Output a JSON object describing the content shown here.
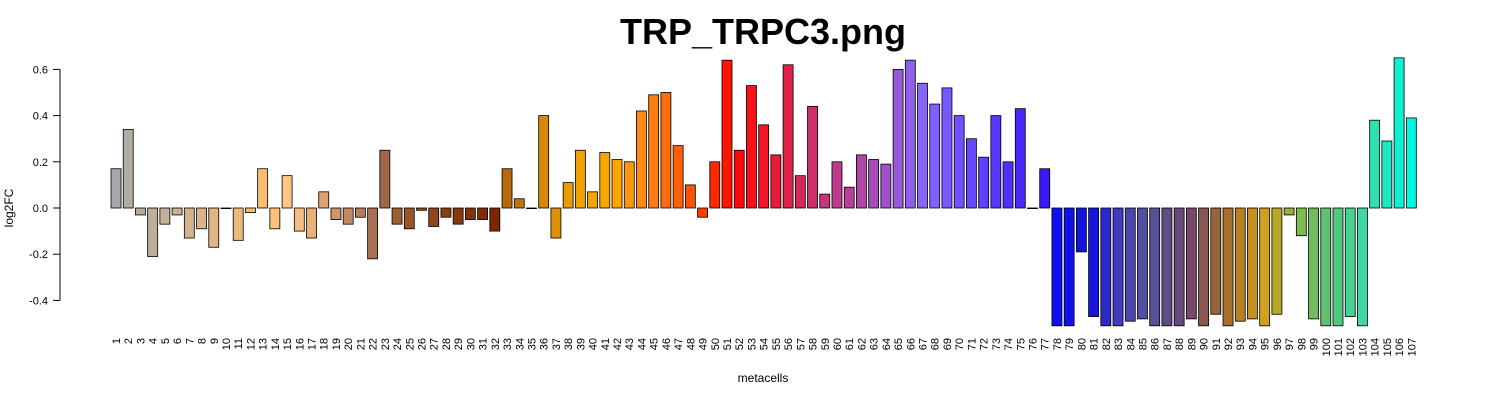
{
  "chart_data": {
    "type": "bar",
    "title": "TRP_TRPC3.png",
    "xlabel": "metacells",
    "ylabel": "log2FC",
    "ylim": [
      -0.5,
      0.6
    ],
    "yticks": [
      "0.6",
      "0.4",
      "0.2",
      "0.0",
      "-0.2",
      "-0.4"
    ],
    "categories": [
      "1",
      "2",
      "3",
      "4",
      "5",
      "6",
      "7",
      "8",
      "9",
      "10",
      "11",
      "12",
      "13",
      "14",
      "15",
      "16",
      "17",
      "18",
      "19",
      "20",
      "21",
      "22",
      "23",
      "24",
      "25",
      "26",
      "27",
      "28",
      "29",
      "30",
      "31",
      "32",
      "33",
      "34",
      "35",
      "36",
      "37",
      "38",
      "39",
      "40",
      "41",
      "42",
      "43",
      "44",
      "45",
      "46",
      "47",
      "48",
      "49",
      "50",
      "51",
      "52",
      "53",
      "54",
      "55",
      "56",
      "57",
      "58",
      "59",
      "60",
      "61",
      "62",
      "63",
      "64",
      "65",
      "66",
      "67",
      "68",
      "69",
      "70",
      "71",
      "72",
      "73",
      "74",
      "75",
      "76",
      "77",
      "78",
      "79",
      "80",
      "81",
      "82",
      "83",
      "84",
      "85",
      "86",
      "87",
      "88",
      "89",
      "90",
      "91",
      "92",
      "93",
      "94",
      "95",
      "96",
      "97",
      "98",
      "99",
      "100",
      "101",
      "102",
      "103",
      "104",
      "105",
      "106",
      "107"
    ],
    "values": [
      0.17,
      0.34,
      -0.03,
      -0.21,
      -0.07,
      -0.03,
      -0.13,
      -0.09,
      -0.17,
      0.0,
      -0.14,
      -0.02,
      0.17,
      -0.09,
      0.14,
      -0.1,
      -0.13,
      0.07,
      -0.05,
      -0.07,
      -0.04,
      -0.22,
      0.25,
      -0.07,
      -0.09,
      -0.01,
      -0.08,
      -0.04,
      -0.07,
      -0.05,
      -0.05,
      -0.1,
      0.17,
      0.04,
      0.0,
      0.4,
      -0.13,
      0.11,
      0.25,
      0.07,
      0.24,
      0.21,
      0.2,
      0.42,
      0.49,
      0.5,
      0.27,
      0.1,
      -0.04,
      0.2,
      0.64,
      0.25,
      0.53,
      0.36,
      0.23,
      0.62,
      0.14,
      0.44,
      0.06,
      0.2,
      0.09,
      0.23,
      0.21,
      0.19,
      0.6,
      0.64,
      0.54,
      0.45,
      0.52,
      0.4,
      0.3,
      0.22,
      0.4,
      0.2,
      0.43,
      0.0,
      0.17,
      -0.51,
      -0.51,
      -0.19,
      -0.47,
      -0.51,
      -0.51,
      -0.49,
      -0.48,
      -0.51,
      -0.51,
      -0.51,
      -0.48,
      -0.51,
      -0.46,
      -0.51,
      -0.49,
      -0.48,
      -0.51,
      -0.46,
      -0.03,
      -0.12,
      -0.48,
      -0.51,
      -0.51,
      -0.47,
      -0.51,
      0.38,
      0.29,
      0.65,
      0.39
    ],
    "colors": [
      "#a8a8a8",
      "#b2aca4",
      "#b9ada1",
      "#bfae9c",
      "#c6b098",
      "#ccb193",
      "#d3b38e",
      "#d9b48a",
      "#e0b685",
      "#e6b780",
      "#edb97c",
      "#f3ba77",
      "#f9bc72",
      "#fcc27b",
      "#fdc785",
      "#f6bd82",
      "#e9b07a",
      "#dca372",
      "#cf966a",
      "#c38a62",
      "#b77d5b",
      "#aa7053",
      "#a0684b",
      "#9c5f2f",
      "#985628",
      "#944d21",
      "#90451a",
      "#8c3e13",
      "#88380d",
      "#843209",
      "#802c05",
      "#7d2701",
      "#b8690f",
      "#c2730c",
      "#cc7d09",
      "#d68706",
      "#e09103",
      "#ea9b00",
      "#f2a200",
      "#f7a400",
      "#fba500",
      "#ffa500",
      "#ff9810",
      "#ff8a18",
      "#ff7c12",
      "#ff6e0c",
      "#ff6006",
      "#ff5200",
      "#ff3c00",
      "#ff2800",
      "#ff1400",
      "#ff0a0a",
      "#f8101a",
      "#f0162a",
      "#e81c3a",
      "#e0224a",
      "#d8285a",
      "#d02e6a",
      "#c8347a",
      "#c03a8a",
      "#b8409a",
      "#b046aa",
      "#a84cba",
      "#a052ca",
      "#9858da",
      "#905eea",
      "#8864fa",
      "#8060ff",
      "#7858ff",
      "#7050ff",
      "#6848ff",
      "#6040ff",
      "#5838ff",
      "#5030ff",
      "#4828ff",
      "#4020ff",
      "#3818ff",
      "#1010f0",
      "#1212e8",
      "#1414e0",
      "#1616d8",
      "#2a2aca",
      "#3c3cbc",
      "#4848ae",
      "#5050a0",
      "#585092",
      "#604c84",
      "#684876",
      "#784868",
      "#885850",
      "#98643a",
      "#a87028",
      "#b88020",
      "#c89020",
      "#d0a020",
      "#b8a828",
      "#98b040",
      "#80b850",
      "#70bc60",
      "#60c070",
      "#50c880",
      "#48d090",
      "#40d8a0",
      "#30e0b0",
      "#20e8c0",
      "#10f0d0",
      "#00f8e0"
    ]
  }
}
